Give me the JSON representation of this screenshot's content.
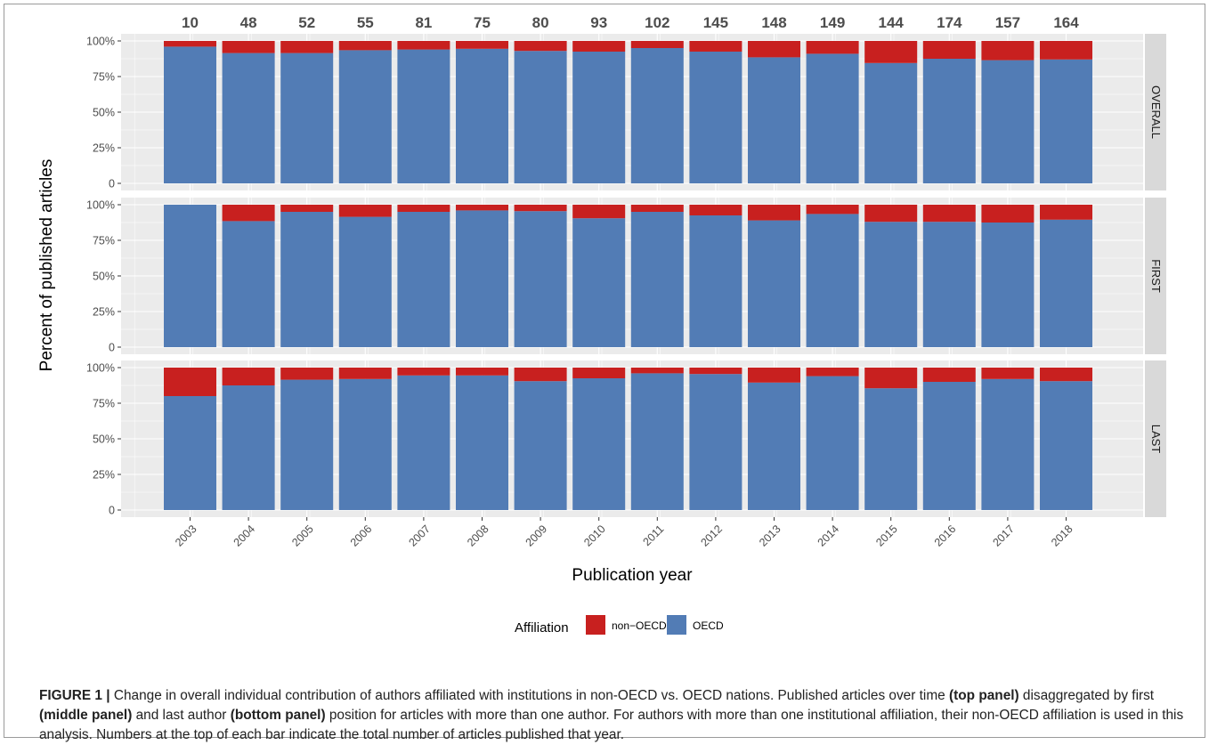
{
  "chart_data": {
    "type": "bar",
    "stacked": true,
    "facet": "rows",
    "categories": [
      "2003",
      "2004",
      "2005",
      "2006",
      "2007",
      "2008",
      "2009",
      "2010",
      "2011",
      "2012",
      "2013",
      "2014",
      "2015",
      "2016",
      "2017",
      "2018"
    ],
    "totals": [
      10,
      48,
      52,
      55,
      81,
      75,
      80,
      93,
      102,
      145,
      148,
      149,
      144,
      174,
      157,
      164
    ],
    "xlabel": "Publication year",
    "ylabel": "Percent of published articles",
    "ylim": [
      0,
      100
    ],
    "y_ticks": [
      "0",
      "25%",
      "50%",
      "75%",
      "100%"
    ],
    "grid": true,
    "legend": {
      "title": "Affiliation",
      "position": "bottom",
      "entries": [
        {
          "name": "non−OECD",
          "color": "#c8201f"
        },
        {
          "name": "OECD",
          "color": "#527cb5"
        }
      ]
    },
    "panels": [
      {
        "label": "OVERALL",
        "series": [
          {
            "name": "OECD",
            "values": [
              96,
              91.5,
              91.5,
              93.5,
              94,
              94.5,
              93,
              92.5,
              95,
              92.5,
              88.5,
              91,
              84.5,
              87.5,
              86.5,
              87
            ]
          },
          {
            "name": "non−OECD",
            "values": [
              4,
              8.5,
              8.5,
              6.5,
              6,
              5.5,
              7,
              7.5,
              5,
              7.5,
              11.5,
              9,
              15.5,
              12.5,
              13.5,
              13
            ]
          }
        ]
      },
      {
        "label": "FIRST",
        "series": [
          {
            "name": "OECD",
            "values": [
              100,
              88.5,
              95,
              91.5,
              95,
              96,
              95.5,
              90.5,
              95,
              92.5,
              89,
              93.5,
              88,
              88,
              87.5,
              89.5
            ]
          },
          {
            "name": "non−OECD",
            "values": [
              0,
              11.5,
              5,
              8.5,
              5,
              4,
              4.5,
              9.5,
              5,
              7.5,
              11,
              6.5,
              12,
              12,
              12.5,
              10.5
            ]
          }
        ]
      },
      {
        "label": "LAST",
        "series": [
          {
            "name": "OECD",
            "values": [
              80,
              87.5,
              91.5,
              92,
              94.5,
              94.5,
              90.5,
              92.5,
              96,
              95.5,
              89.5,
              94,
              85.5,
              90,
              92,
              90.5
            ]
          },
          {
            "name": "non−OECD",
            "values": [
              20,
              12.5,
              8.5,
              8,
              5.5,
              5.5,
              9.5,
              7.5,
              4,
              4.5,
              10.5,
              6,
              14.5,
              10,
              8,
              9.5
            ]
          }
        ]
      }
    ]
  },
  "caption": {
    "label": "FIGURE 1 |",
    "parts": [
      {
        "text": " Change in overall individual contribution of authors affiliated with institutions in non-OECD vs. OECD nations. Published articles over time ",
        "bold": false
      },
      {
        "text": "(top panel)",
        "bold": true
      },
      {
        "text": " disaggregated by first ",
        "bold": false
      },
      {
        "text": "(middle panel)",
        "bold": true
      },
      {
        "text": " and last author ",
        "bold": false
      },
      {
        "text": "(bottom panel)",
        "bold": true
      },
      {
        "text": " position for articles with more than one author. For authors with more than one institutional affiliation, their non-OECD affiliation is used in this analysis. Numbers at the top of each bar indicate the total number of articles published that year.",
        "bold": false
      }
    ]
  }
}
